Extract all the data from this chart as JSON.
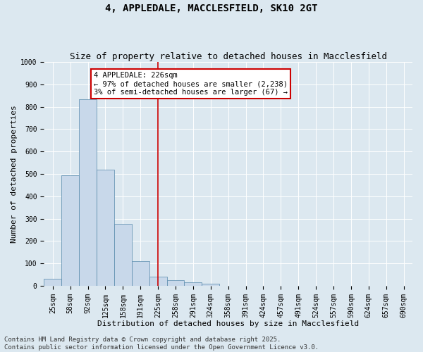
{
  "title": "4, APPLEDALE, MACCLESFIELD, SK10 2GT",
  "subtitle": "Size of property relative to detached houses in Macclesfield",
  "xlabel": "Distribution of detached houses by size in Macclesfield",
  "ylabel": "Number of detached properties",
  "bin_labels": [
    "25sqm",
    "58sqm",
    "92sqm",
    "125sqm",
    "158sqm",
    "191sqm",
    "225sqm",
    "258sqm",
    "291sqm",
    "324sqm",
    "358sqm",
    "391sqm",
    "424sqm",
    "457sqm",
    "491sqm",
    "524sqm",
    "557sqm",
    "590sqm",
    "624sqm",
    "657sqm",
    "690sqm"
  ],
  "bar_values": [
    30,
    495,
    835,
    520,
    275,
    110,
    40,
    25,
    15,
    8,
    0,
    0,
    0,
    0,
    0,
    0,
    0,
    0,
    0,
    0,
    0
  ],
  "bar_color": "#c8d8ea",
  "bar_edge_color": "#5588aa",
  "vline_x_index": 6,
  "vline_color": "#cc0000",
  "annotation_text": "4 APPLEDALE: 226sqm\n← 97% of detached houses are smaller (2,238)\n3% of semi-detached houses are larger (67) →",
  "annotation_box_color": "#ffffff",
  "annotation_box_edge": "#cc0000",
  "ylim": [
    0,
    1000
  ],
  "yticks": [
    0,
    100,
    200,
    300,
    400,
    500,
    600,
    700,
    800,
    900,
    1000
  ],
  "background_color": "#dce8f0",
  "plot_bg_color": "#dce8f0",
  "footer_text": "Contains HM Land Registry data © Crown copyright and database right 2025.\nContains public sector information licensed under the Open Government Licence v3.0.",
  "grid_color": "#ffffff",
  "title_fontsize": 10,
  "subtitle_fontsize": 9,
  "axis_label_fontsize": 8,
  "tick_fontsize": 7,
  "annotation_fontsize": 7.5,
  "footer_fontsize": 6.5
}
